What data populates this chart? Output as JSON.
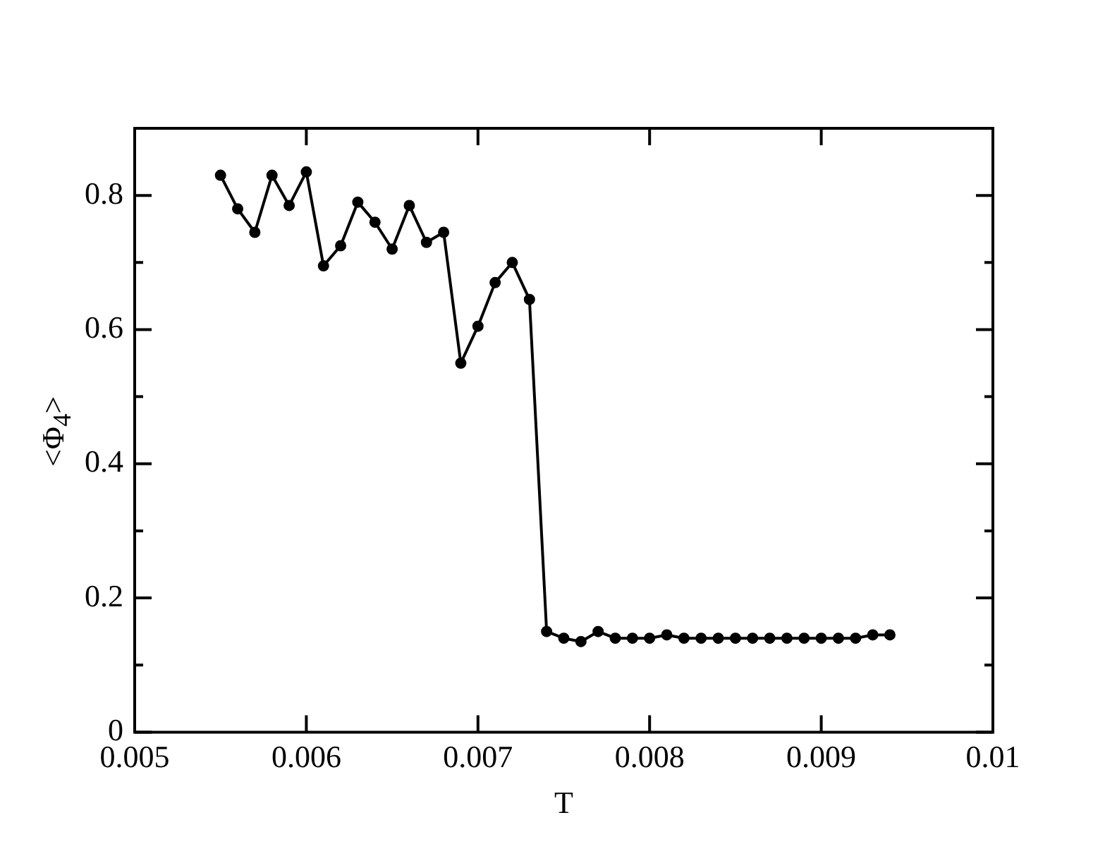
{
  "chart_data": {
    "type": "line",
    "xlabel": "T",
    "ylabel": "<Φ$_{4}$>",
    "x": [
      0.0055,
      0.0056,
      0.0057,
      0.0058,
      0.0059,
      0.006,
      0.0061,
      0.0062,
      0.0063,
      0.0064,
      0.0065,
      0.0066,
      0.0067,
      0.0068,
      0.0069,
      0.007,
      0.0071,
      0.0072,
      0.0073,
      0.0074,
      0.0075,
      0.0076,
      0.0077,
      0.0078,
      0.0079,
      0.008,
      0.0081,
      0.0082,
      0.0083,
      0.0084,
      0.0085,
      0.0086,
      0.0087,
      0.0088,
      0.0089,
      0.009,
      0.0091,
      0.0092,
      0.0093,
      0.0094
    ],
    "series": [
      {
        "color": "#000000",
        "values": [
          0.83,
          0.78,
          0.745,
          0.83,
          0.785,
          0.835,
          0.695,
          0.725,
          0.79,
          0.76,
          0.72,
          0.785,
          0.73,
          0.745,
          0.55,
          0.605,
          0.67,
          0.7,
          0.645,
          0.15,
          0.14,
          0.135,
          0.15,
          0.14,
          0.14,
          0.14,
          0.145,
          0.14,
          0.14,
          0.14,
          0.14,
          0.14,
          0.14,
          0.14,
          0.14,
          0.14,
          0.14,
          0.14,
          0.145,
          0.145
        ]
      }
    ],
    "xlim": [
      0.005,
      0.01
    ],
    "xticks": [
      0.005,
      0.006,
      0.007,
      0.008,
      0.009,
      0.01
    ],
    "ylim": [
      0,
      0.9
    ],
    "yticks": [
      0,
      {
        "value": 0.1,
        "label": null
      },
      0.2,
      {
        "value": 0.3,
        "label": null
      },
      0.4,
      {
        "value": 0.5,
        "label": null
      },
      0.6,
      {
        "value": 0.7,
        "label": null
      },
      0.8
    ],
    "marker": "circle",
    "line_style": "solid",
    "legend": false
  }
}
